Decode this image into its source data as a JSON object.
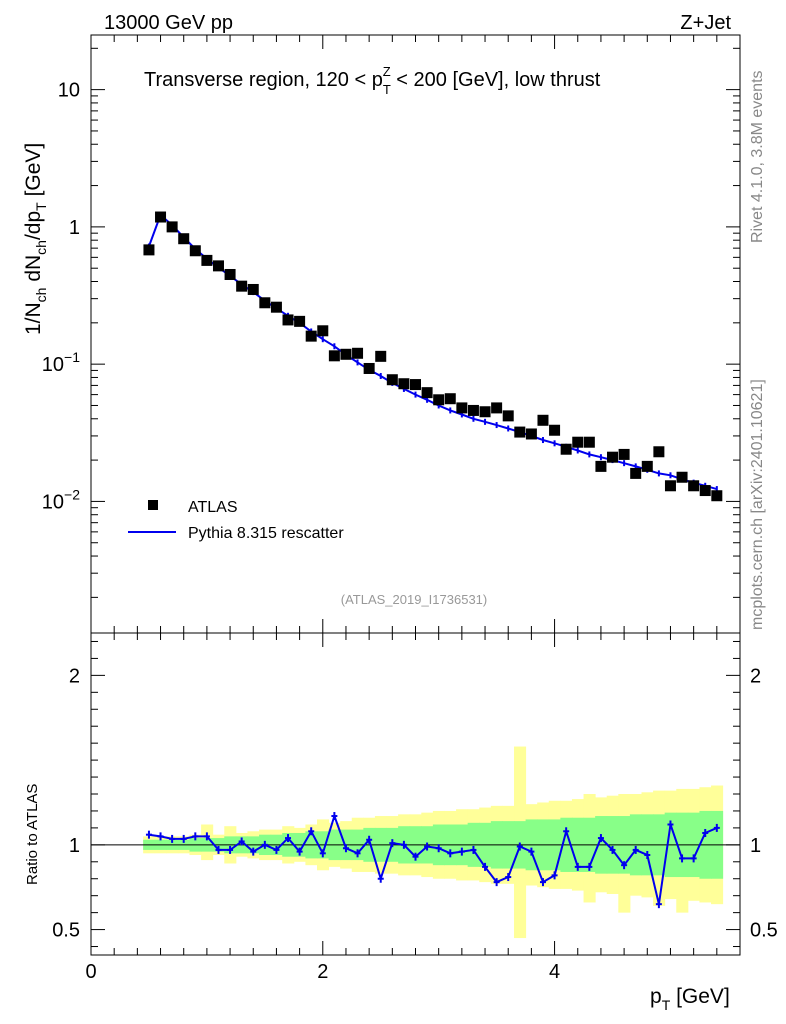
{
  "header": {
    "energy_label": "13000 GeV pp",
    "process_label": "Z+Jet"
  },
  "side_labels": {
    "rivet": "Rivet 4.1.0,  3.8M events",
    "mcplots": "mcplots.cern.ch [arXiv:2401.10621]"
  },
  "colors": {
    "mc": "#0000ee",
    "data": "#000000",
    "band_stat": "#88ff88",
    "band_total": "#ffff99"
  },
  "chart_data": [
    {
      "type": "scatter",
      "title": "Transverse region, 120 < p_T^Z < 200 [GeV], low thrust",
      "title_parts": {
        "a": "Transverse region, 120 < p",
        "sub": "T",
        "sup": "Z",
        "b": " < 200 [GeV], low thrust"
      },
      "ylabel": "1/N_ch dN_ch/dp_T [GeV]",
      "ylabel_parts": {
        "p1": "1/N",
        "s1": "ch",
        "p2": " dN",
        "s2": "ch",
        "p3": "/dp",
        "s3": "T",
        "p4": " [GeV]"
      },
      "xlabel": "p_T [GeV]",
      "xlim": [
        0,
        5.6
      ],
      "ylim": [
        0.0011,
        25
      ],
      "yscale": "log",
      "yticks": [
        {
          "value": 10,
          "label": "10"
        },
        {
          "value": 1,
          "label": "1"
        },
        {
          "value": 0.1,
          "label": "10",
          "exp": "−1"
        },
        {
          "value": 0.01,
          "label": "10",
          "exp": "−2"
        }
      ],
      "legend": [
        "ATLAS",
        "Pythia 8.315 rescatter"
      ],
      "watermark": "(ATLAS_2019_I1736531)",
      "x": [
        0.5,
        0.6,
        0.7,
        0.8,
        0.9,
        1.0,
        1.1,
        1.2,
        1.3,
        1.4,
        1.5,
        1.6,
        1.7,
        1.8,
        1.9,
        2.0,
        2.1,
        2.2,
        2.3,
        2.4,
        2.5,
        2.6,
        2.7,
        2.8,
        2.9,
        3.0,
        3.1,
        3.2,
        3.3,
        3.4,
        3.5,
        3.6,
        3.7,
        3.8,
        3.9,
        4.0,
        4.1,
        4.2,
        4.3,
        4.4,
        4.5,
        4.6,
        4.7,
        4.8,
        4.9,
        5.0,
        5.1,
        5.2,
        5.3,
        5.4
      ],
      "series": [
        {
          "name": "ATLAS",
          "values": [
            0.68,
            1.18,
            1.0,
            0.82,
            0.67,
            0.57,
            0.52,
            0.45,
            0.37,
            0.35,
            0.28,
            0.26,
            0.21,
            0.205,
            0.16,
            0.175,
            0.115,
            0.118,
            0.12,
            0.093,
            0.114,
            0.077,
            0.072,
            0.071,
            0.062,
            0.055,
            0.056,
            0.048,
            0.046,
            0.045,
            0.048,
            0.042,
            0.032,
            0.031,
            0.039,
            0.033,
            0.024,
            0.027,
            0.027,
            0.018,
            0.021,
            0.022,
            0.016,
            0.018,
            0.023,
            0.013,
            0.015,
            0.013,
            0.012,
            0.011
          ]
        },
        {
          "name": "Pythia 8.315 rescatter",
          "values": [
            0.72,
            1.22,
            1.03,
            0.84,
            0.69,
            0.585,
            0.505,
            0.44,
            0.38,
            0.335,
            0.29,
            0.255,
            0.225,
            0.2,
            0.173,
            0.152,
            0.135,
            0.117,
            0.103,
            0.091,
            0.082,
            0.073,
            0.066,
            0.06,
            0.055,
            0.05,
            0.046,
            0.043,
            0.04,
            0.038,
            0.036,
            0.034,
            0.032,
            0.03,
            0.028,
            0.0265,
            0.025,
            0.0235,
            0.022,
            0.021,
            0.02,
            0.019,
            0.018,
            0.017,
            0.016,
            0.0155,
            0.0145,
            0.0137,
            0.013,
            0.0123
          ]
        }
      ]
    },
    {
      "type": "line",
      "title": "",
      "ylabel": "Ratio to ATLAS",
      "xlabel": "p_T [GeV]",
      "xlim": [
        0,
        5.6
      ],
      "ylim": [
        0.35,
        2.25
      ],
      "xticks": [
        0,
        2,
        4
      ],
      "yticks": [
        0.5,
        1,
        2
      ],
      "reference_line": 1.0,
      "x": [
        0.5,
        0.6,
        0.7,
        0.8,
        0.9,
        1.0,
        1.1,
        1.2,
        1.3,
        1.4,
        1.5,
        1.6,
        1.7,
        1.8,
        1.9,
        2.0,
        2.1,
        2.2,
        2.3,
        2.4,
        2.5,
        2.6,
        2.7,
        2.8,
        2.9,
        3.0,
        3.1,
        3.2,
        3.3,
        3.4,
        3.5,
        3.6,
        3.7,
        3.8,
        3.9,
        4.0,
        4.1,
        4.2,
        4.3,
        4.4,
        4.5,
        4.6,
        4.7,
        4.8,
        4.9,
        5.0,
        5.1,
        5.2,
        5.3,
        5.4
      ],
      "series": [
        {
          "name": "Pythia 8.315 rescatter / ATLAS",
          "values": [
            1.06,
            1.05,
            1.035,
            1.035,
            1.05,
            1.05,
            0.97,
            0.97,
            1.02,
            0.96,
            1.0,
            0.97,
            1.04,
            0.96,
            1.08,
            0.95,
            1.17,
            0.98,
            0.95,
            1.03,
            0.8,
            1.01,
            1.0,
            0.93,
            0.99,
            0.98,
            0.95,
            0.96,
            0.97,
            0.87,
            0.78,
            0.81,
            0.99,
            0.96,
            0.78,
            0.82,
            1.08,
            0.87,
            0.87,
            1.04,
            0.97,
            0.88,
            0.97,
            0.94,
            0.65,
            1.12,
            0.92,
            0.92,
            1.07,
            1.1
          ]
        },
        {
          "name": "ATLAS stat uncertainty",
          "lower": [
            0.97,
            0.97,
            0.97,
            0.97,
            0.96,
            0.96,
            0.96,
            0.95,
            0.95,
            0.95,
            0.94,
            0.94,
            0.93,
            0.93,
            0.92,
            0.92,
            0.91,
            0.91,
            0.91,
            0.9,
            0.9,
            0.9,
            0.89,
            0.89,
            0.89,
            0.88,
            0.88,
            0.88,
            0.87,
            0.87,
            0.86,
            0.86,
            0.86,
            0.85,
            0.85,
            0.85,
            0.84,
            0.84,
            0.84,
            0.83,
            0.83,
            0.83,
            0.82,
            0.82,
            0.82,
            0.81,
            0.81,
            0.81,
            0.8,
            0.8
          ],
          "upper": [
            1.03,
            1.03,
            1.03,
            1.03,
            1.04,
            1.04,
            1.04,
            1.05,
            1.05,
            1.05,
            1.06,
            1.06,
            1.07,
            1.07,
            1.08,
            1.08,
            1.09,
            1.09,
            1.09,
            1.1,
            1.1,
            1.1,
            1.11,
            1.11,
            1.11,
            1.12,
            1.12,
            1.12,
            1.13,
            1.13,
            1.14,
            1.14,
            1.14,
            1.15,
            1.15,
            1.15,
            1.16,
            1.16,
            1.16,
            1.17,
            1.17,
            1.17,
            1.18,
            1.18,
            1.18,
            1.19,
            1.19,
            1.19,
            1.2,
            1.2
          ]
        },
        {
          "name": "ATLAS total uncertainty",
          "lower": [
            0.95,
            0.95,
            0.95,
            0.95,
            0.94,
            0.91,
            0.94,
            0.89,
            0.93,
            0.92,
            0.91,
            0.91,
            0.89,
            0.9,
            0.88,
            0.85,
            0.87,
            0.86,
            0.84,
            0.84,
            0.83,
            0.83,
            0.82,
            0.82,
            0.81,
            0.8,
            0.8,
            0.79,
            0.79,
            0.78,
            0.77,
            0.77,
            0.45,
            0.76,
            0.75,
            0.74,
            0.74,
            0.73,
            0.66,
            0.72,
            0.71,
            0.6,
            0.7,
            0.69,
            0.64,
            0.68,
            0.6,
            0.67,
            0.66,
            0.65
          ],
          "upper": [
            1.05,
            1.05,
            1.05,
            1.05,
            1.06,
            1.12,
            1.06,
            1.11,
            1.07,
            1.08,
            1.09,
            1.09,
            1.11,
            1.1,
            1.12,
            1.15,
            1.13,
            1.14,
            1.16,
            1.16,
            1.17,
            1.17,
            1.18,
            1.18,
            1.19,
            1.2,
            1.2,
            1.21,
            1.21,
            1.22,
            1.23,
            1.23,
            1.58,
            1.24,
            1.25,
            1.26,
            1.26,
            1.27,
            1.3,
            1.28,
            1.29,
            1.3,
            1.3,
            1.31,
            1.32,
            1.32,
            1.33,
            1.33,
            1.34,
            1.35
          ]
        }
      ]
    }
  ]
}
